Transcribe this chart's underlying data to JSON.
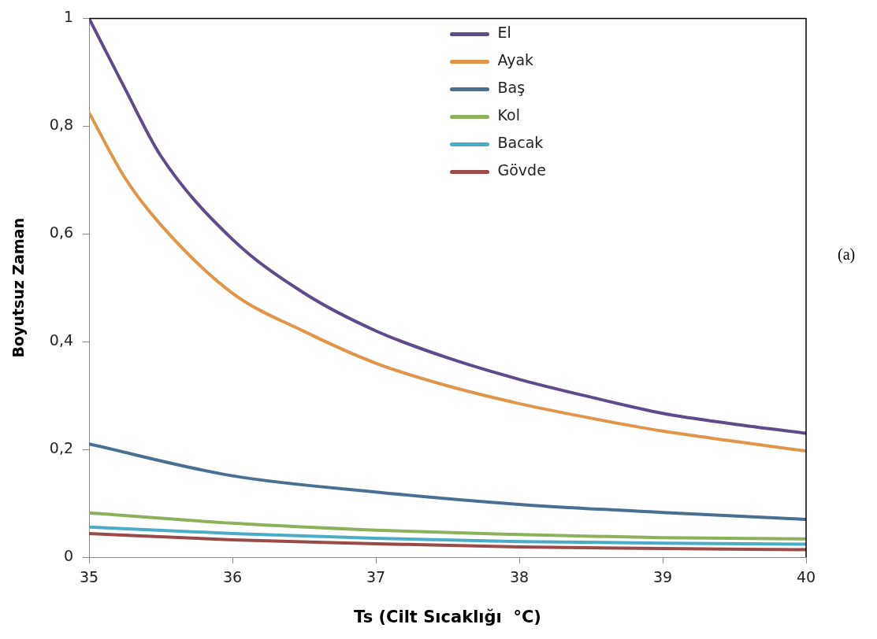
{
  "chart_data": {
    "type": "line",
    "xlabel": "Ts (Cilt Sıcaklığı  °C)",
    "ylabel": "Boyutsuz Zaman",
    "xlim": [
      35,
      40
    ],
    "xticks": [
      35,
      36,
      37,
      38,
      39,
      40
    ],
    "ylim": [
      0,
      1
    ],
    "yticks": [
      0,
      {
        "value": 0.2,
        "label": "0,2"
      },
      {
        "value": 0.4,
        "label": "0,4"
      },
      {
        "value": 0.6,
        "label": "0,6"
      },
      {
        "value": 0.8,
        "label": "0,8"
      },
      1
    ],
    "grid": false,
    "legend": "top right",
    "marker": "none",
    "line_style": "solid",
    "annotations": [
      "(a)"
    ],
    "series": [
      {
        "name": "El",
        "color": "#5f4b8b",
        "x": [
          35,
          35.25,
          35.5,
          36,
          36.5,
          37,
          37.5,
          38,
          38.5,
          39,
          39.5,
          40
        ],
        "values": [
          1.0,
          0.87,
          0.745,
          0.59,
          0.49,
          0.42,
          0.37,
          0.33,
          0.297,
          0.267,
          0.247,
          0.23
        ]
      },
      {
        "name": "Ayak",
        "color": "#e0954a",
        "x": [
          35,
          35.25,
          35.5,
          36,
          36.5,
          37,
          37.5,
          38,
          38.5,
          39,
          39.5,
          40
        ],
        "values": [
          0.825,
          0.704,
          0.617,
          0.49,
          0.419,
          0.36,
          0.318,
          0.285,
          0.258,
          0.234,
          0.215,
          0.197
        ]
      },
      {
        "name": "Baş",
        "color": "#4a6f91",
        "x": [
          35,
          36,
          37,
          38,
          39,
          40
        ],
        "values": [
          0.21,
          0.151,
          0.121,
          0.098,
          0.083,
          0.07
        ]
      },
      {
        "name": "Kol",
        "color": "#8db05c",
        "x": [
          35,
          36,
          37,
          38,
          39,
          40
        ],
        "values": [
          0.082,
          0.063,
          0.05,
          0.042,
          0.036,
          0.034
        ]
      },
      {
        "name": "Bacak",
        "color": "#4bacc6",
        "x": [
          35,
          36,
          37,
          38,
          39,
          40
        ],
        "values": [
          0.056,
          0.044,
          0.035,
          0.029,
          0.026,
          0.024
        ]
      },
      {
        "name": "Gövde",
        "color": "#9b4a4a",
        "x": [
          35,
          36,
          37,
          38,
          39,
          40
        ],
        "values": [
          0.044,
          0.032,
          0.025,
          0.019,
          0.016,
          0.014
        ]
      }
    ]
  }
}
